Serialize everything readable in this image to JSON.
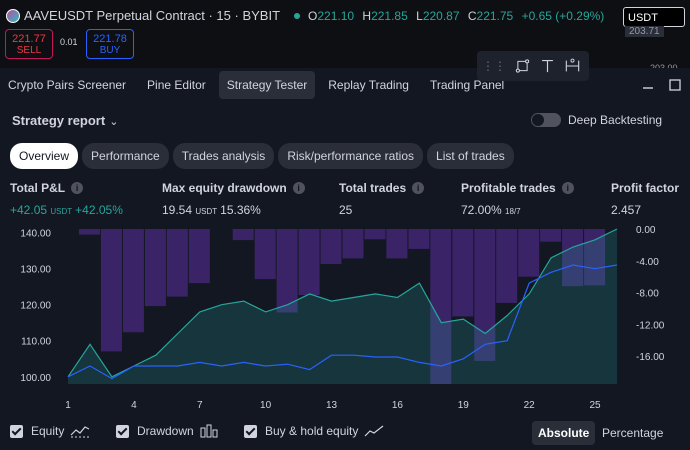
{
  "symbol": {
    "title": "AAVEUSDT Perpetual Contract · 15 · BYBIT",
    "ohlc": [
      {
        "k": "O",
        "v": "221.10"
      },
      {
        "k": "H",
        "v": "221.85"
      },
      {
        "k": "L",
        "v": "220.87"
      },
      {
        "k": "C",
        "v": "221.75"
      }
    ],
    "change": "+0.65 (+0.29%)"
  },
  "trade": {
    "sell_price": "221.77",
    "sell_label": "SELL",
    "buy_price": "221.78",
    "buy_label": "BUY",
    "spread": "0.01"
  },
  "currency_select": "USDT",
  "price_tag": "203.71",
  "price_tag2": "203.00",
  "drawing_tools": [
    "point-anchor-tool",
    "text-tool",
    "measure-tool"
  ],
  "tabs": [
    "Crypto Pairs Screener",
    "Pine Editor",
    "Strategy Tester",
    "Replay Trading",
    "Trading Panel"
  ],
  "active_tab": "Strategy Tester",
  "report": {
    "title": "Strategy report",
    "deep_label": "Deep Backtesting"
  },
  "subtabs": [
    "Overview",
    "Performance",
    "Trades analysis",
    "Risk/performance ratios",
    "List of trades"
  ],
  "metrics": [
    {
      "label": "Total P&L",
      "value": "+42.05",
      "unit": "USDT",
      "extra": "+42.05%",
      "positive": true
    },
    {
      "label": "Max equity drawdown",
      "value": "19.54",
      "unit": "USDT",
      "extra": "15.36%",
      "positive": false
    },
    {
      "label": "Total trades",
      "value": "25",
      "unit": "",
      "extra": "",
      "positive": false
    },
    {
      "label": "Profitable trades",
      "value": "72.00%",
      "unit": "",
      "extra": "18/7",
      "positive": false
    },
    {
      "label": "Profit factor",
      "value": "2.457",
      "unit": "",
      "extra": "",
      "positive": false
    }
  ],
  "chart_data": {
    "type": "area",
    "x": [
      1,
      2,
      3,
      4,
      5,
      6,
      7,
      8,
      9,
      10,
      11,
      12,
      13,
      14,
      15,
      16,
      17,
      18,
      19,
      20,
      21,
      22,
      23,
      24,
      25,
      26
    ],
    "x_ticks": [
      "1",
      "4",
      "7",
      "10",
      "13",
      "16",
      "19",
      "22",
      "25"
    ],
    "y_left_ticks": [
      "140.00",
      "130.00",
      "120.00",
      "110.00",
      "100.00"
    ],
    "y_right_ticks": [
      "0.00",
      "-4.00",
      "-8.00",
      "-12.00",
      "-16.00"
    ],
    "ylim_left": [
      98,
      141
    ],
    "ylim_right": [
      -19.5,
      0
    ],
    "series": [
      {
        "name": "Equity",
        "color": "#26a69a",
        "values": [
          100,
          109,
          100,
          103,
          106,
          112,
          118,
          120,
          121,
          118,
          120,
          123,
          121,
          122,
          123,
          122,
          126,
          115,
          116,
          112,
          117,
          123,
          133,
          136,
          138,
          143
        ]
      },
      {
        "name": "Drawdown",
        "color": "#7e57c2",
        "values": [
          0,
          -0.7,
          -15.4,
          -13.0,
          -9.7,
          -8.5,
          -6.8,
          0,
          -1.4,
          -6.3,
          -10.5,
          -8.3,
          -4.4,
          -3.7,
          -1.3,
          -3.7,
          -2.5,
          -19.5,
          -11.0,
          -16.6,
          -9.3,
          -6.0,
          -1.6,
          -7.2,
          -7.1,
          0
        ]
      },
      {
        "name": "Buy & hold equity",
        "color": "#2962ff",
        "values": [
          100,
          103,
          99.5,
          103,
          103,
          103,
          104,
          103,
          104,
          103,
          103.5,
          102,
          106,
          106,
          105.5,
          105.5,
          104,
          103,
          105,
          109,
          110,
          126,
          129,
          131,
          130,
          131
        ]
      }
    ]
  },
  "legend": {
    "items": [
      "Equity",
      "Drawdown",
      "Buy & hold equity"
    ],
    "absolute_label": "Absolute",
    "percentage_label": "Percentage"
  }
}
